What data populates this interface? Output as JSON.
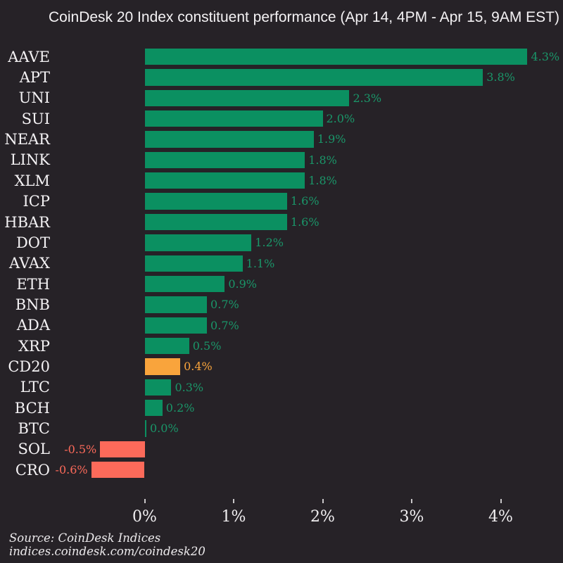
{
  "title": "CoinDesk 20 Index constituent performance (Apr 14, 4PM - Apr 15, 9AM EST)",
  "source": {
    "line1": "Source: CoinDesk Indices",
    "line2": "indices.coindesk.com/coindesk20"
  },
  "colors": {
    "background": "#262227",
    "positive_bar": "#0b9061",
    "positive_text": "#1a9669",
    "highlight_bar": "#f9a43c",
    "highlight_text": "#f9a43c",
    "negative_bar": "#fc6a5a",
    "negative_text": "#fc6a5a",
    "ticker_label": "#f4f2f4",
    "axis_label": "#f0eef0"
  },
  "chart_data": {
    "type": "bar",
    "orientation": "horizontal",
    "title": "CoinDesk 20 Index constituent performance (Apr 14, 4PM - Apr 15, 9AM EST)",
    "categories": [
      "AAVE",
      "APT",
      "UNI",
      "SUI",
      "NEAR",
      "LINK",
      "XLM",
      "ICP",
      "HBAR",
      "DOT",
      "AVAX",
      "ETH",
      "BNB",
      "ADA",
      "XRP",
      "CD20",
      "LTC",
      "BCH",
      "BTC",
      "SOL",
      "CRO"
    ],
    "values": [
      4.3,
      3.8,
      2.3,
      2.0,
      1.9,
      1.8,
      1.8,
      1.6,
      1.6,
      1.2,
      1.1,
      0.9,
      0.7,
      0.7,
      0.5,
      0.4,
      0.3,
      0.2,
      0.0,
      -0.5,
      -0.6
    ],
    "value_labels": [
      "4.3%",
      "3.8%",
      "2.3%",
      "2.0%",
      "1.9%",
      "1.8%",
      "1.8%",
      "1.6%",
      "1.6%",
      "1.2%",
      "1.1%",
      "0.9%",
      "0.7%",
      "0.7%",
      "0.5%",
      "0.4%",
      "0.3%",
      "0.2%",
      "0.0%",
      "-0.5%",
      "-0.6%"
    ],
    "highlight_category": "CD20",
    "xlabel": "",
    "ylabel": "",
    "xtick_values": [
      0,
      1,
      2,
      3,
      4
    ],
    "xtick_labels": [
      "0%",
      "1%",
      "2%",
      "3%",
      "4%"
    ],
    "xlim": [
      -0.97,
      4.62
    ],
    "grid": false,
    "legend": false
  }
}
